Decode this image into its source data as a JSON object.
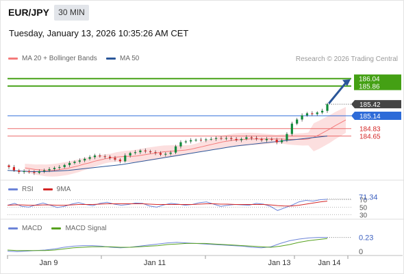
{
  "header": {
    "symbol": "EUR/JPY",
    "timeframe": "30 MIN",
    "datetime": "Tuesday, January 13, 2026 10:35:26 AM CET"
  },
  "legend": {
    "ma20_label": "MA 20 + Bollinger Bands",
    "ma50_label": "MA 50",
    "credit": "Research © 2026 Trading Central",
    "rsi_label": "RSI",
    "rsi_ma_label": "9MA",
    "macd_label": "MACD",
    "macd_signal_label": "MACD Signal"
  },
  "colors": {
    "ma20": "#f47a7a",
    "bollinger_fill": "#fbd9d9",
    "ma50": "#2a5699",
    "resistance": "#44a014",
    "support": "#ec6a6a",
    "pivot": "#2d6bd8",
    "price_tag": "#444444",
    "candle_up": "#0f8a3a",
    "candle_down": "#d42626",
    "rsi": "#6c84d8",
    "rsi_ma": "#d42626",
    "macd": "#6c84d8",
    "macd_signal": "#56a11e",
    "arrow": "#2a5699"
  },
  "chart_data": [
    {
      "type": "candlestick",
      "panel": "price",
      "ylim": [
        183.6,
        186.3
      ],
      "x_ticks": [
        "Jan 9",
        "Jan 11",
        "Jan 13",
        "Jan 14"
      ],
      "closes": [
        183.9,
        183.82,
        183.78,
        183.8,
        183.78,
        183.76,
        183.8,
        183.82,
        183.85,
        183.88,
        183.9,
        183.95,
        184.0,
        184.03,
        184.06,
        184.1,
        184.14,
        184.18,
        184.16,
        184.15,
        184.12,
        184.08,
        184.04,
        184.18,
        184.24,
        184.26,
        184.3,
        184.28,
        184.26,
        184.24,
        184.2,
        184.22,
        184.25,
        184.4,
        184.5,
        184.52,
        184.55,
        184.56,
        184.55,
        184.57,
        184.58,
        184.6,
        184.59,
        184.6,
        184.58,
        184.55,
        184.58,
        184.62,
        184.6,
        184.58,
        184.55,
        184.58,
        184.56,
        184.5,
        184.55,
        184.7,
        184.95,
        185.05,
        185.15,
        185.2,
        185.18,
        185.22,
        185.26,
        185.42
      ],
      "ma20": [
        183.88,
        183.86,
        183.84,
        183.83,
        183.82,
        183.82,
        183.83,
        183.85,
        183.87,
        183.9,
        183.93,
        183.97,
        184.0,
        184.04,
        184.07,
        184.1,
        184.12,
        184.14,
        184.15,
        184.16,
        184.16,
        184.17,
        184.19,
        184.21,
        184.23,
        184.25,
        184.27,
        184.28,
        184.29,
        184.3,
        184.31,
        184.33,
        184.36,
        184.39,
        184.42,
        184.45,
        184.48,
        184.51,
        184.53,
        184.55,
        184.56,
        184.57,
        184.58,
        184.58,
        184.58,
        184.58,
        184.58,
        184.58,
        184.58,
        184.57,
        184.57,
        184.57,
        184.57,
        184.58,
        184.62,
        184.68,
        184.75,
        184.82,
        184.9,
        184.97,
        185.04
      ],
      "ma50": [
        183.82,
        183.81,
        183.8,
        183.79,
        183.79,
        183.79,
        183.8,
        183.81,
        183.82,
        183.84,
        183.86,
        183.88,
        183.9,
        183.92,
        183.94,
        183.96,
        183.99,
        184.02,
        184.05,
        184.08,
        184.11,
        184.14,
        184.17,
        184.2,
        184.23,
        184.26,
        184.29,
        184.32,
        184.35,
        184.38,
        184.41,
        184.43,
        184.45,
        184.47,
        184.49,
        184.51,
        184.53,
        184.55,
        184.57,
        184.59,
        184.61,
        184.63,
        184.65
      ],
      "levels": [
        {
          "value": 186.04,
          "label": "186.04",
          "type": "resistance"
        },
        {
          "value": 185.86,
          "label": "185.86",
          "type": "resistance"
        },
        {
          "value": 185.42,
          "label": "185.42",
          "type": "price"
        },
        {
          "value": 185.14,
          "label": "185.14",
          "type": "pivot"
        },
        {
          "value": 184.83,
          "label": "184.83",
          "type": "support"
        },
        {
          "value": 184.65,
          "label": "184.65",
          "type": "support"
        }
      ],
      "forecast_arrow": {
        "from": 185.42,
        "to": 186.04
      }
    },
    {
      "type": "line",
      "panel": "rsi",
      "ylim": [
        25,
        80
      ],
      "y_ticks": [
        70,
        50,
        30
      ],
      "latest_value": 71.34,
      "latest_label": "71.34",
      "series": [
        {
          "name": "RSI",
          "values": [
            55,
            60,
            52,
            50,
            56,
            61,
            55,
            49,
            52,
            58,
            62,
            57,
            54,
            60,
            63,
            58,
            55,
            57,
            61,
            60,
            53,
            50,
            56,
            60,
            58,
            55,
            57,
            62,
            64,
            58,
            52,
            55,
            57,
            56,
            55,
            60,
            58,
            52,
            41,
            48,
            55,
            64,
            68,
            66,
            70,
            71
          ]
        },
        {
          "name": "9MA",
          "values": [
            55,
            56,
            56,
            55,
            55,
            56,
            56,
            55,
            55,
            56,
            57,
            57,
            57,
            58,
            59,
            59,
            59,
            59,
            59,
            59,
            58,
            57,
            57,
            57,
            57,
            57,
            57,
            58,
            59,
            59,
            58,
            58,
            57,
            57,
            57,
            57,
            57,
            56,
            54,
            53,
            53,
            55,
            58,
            61,
            64,
            66
          ]
        }
      ]
    },
    {
      "type": "line",
      "panel": "macd",
      "ylim": [
        -0.05,
        0.3
      ],
      "y_ticks": [
        0
      ],
      "latest_value": 0.23,
      "latest_label": "0.23",
      "series": [
        {
          "name": "MACD",
          "values": [
            -0.02,
            -0.03,
            -0.02,
            -0.01,
            0.0,
            0.02,
            0.05,
            0.07,
            0.08,
            0.08,
            0.07,
            0.05,
            0.04,
            0.05,
            0.07,
            0.09,
            0.11,
            0.13,
            0.14,
            0.13,
            0.12,
            0.11,
            0.1,
            0.09,
            0.08,
            0.07,
            0.05,
            0.04,
            0.06,
            0.12,
            0.17,
            0.2,
            0.22,
            0.23,
            0.23
          ]
        },
        {
          "name": "MACD Signal",
          "values": [
            0.0,
            -0.01,
            -0.01,
            -0.01,
            -0.01,
            0.0,
            0.02,
            0.04,
            0.05,
            0.06,
            0.06,
            0.06,
            0.05,
            0.05,
            0.06,
            0.07,
            0.08,
            0.1,
            0.11,
            0.12,
            0.12,
            0.12,
            0.11,
            0.1,
            0.09,
            0.08,
            0.07,
            0.06,
            0.05,
            0.07,
            0.1,
            0.14,
            0.17,
            0.19,
            0.21
          ]
        }
      ]
    }
  ]
}
